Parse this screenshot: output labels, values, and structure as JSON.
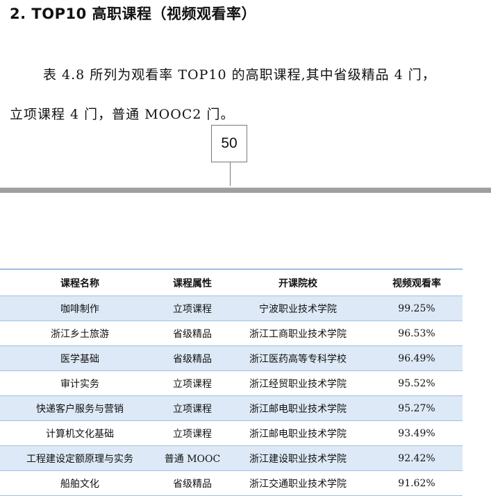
{
  "heading": "2. TOP10 高职课程（视频观看率）",
  "paragraph": {
    "line1": "表 4.8 所列为观看率 TOP10 的高职课程,其中省级精品 4 门，",
    "line2": "立项课程 4 门，普通 MOOC2 门。"
  },
  "page_number": "50",
  "table": {
    "headers": [
      "课程名称",
      "课程属性",
      "开课院校",
      "视频观看率"
    ],
    "rows": [
      [
        "咖啡制作",
        "立项课程",
        "宁波职业技术学院",
        "99.25%"
      ],
      [
        "浙江乡土旅游",
        "省级精品",
        "浙江工商职业技术学院",
        "96.53%"
      ],
      [
        "医学基础",
        "省级精品",
        "浙江医药高等专科学校",
        "96.49%"
      ],
      [
        "审计实务",
        "立项课程",
        "浙江经贸职业技术学院",
        "95.52%"
      ],
      [
        "快递客户服务与营销",
        "立项课程",
        "浙江邮电职业技术学院",
        "95.27%"
      ],
      [
        "计算机文化基础",
        "立项课程",
        "浙江邮电职业技术学院",
        "93.49%"
      ],
      [
        "工程建设定额原理与实务",
        "普通 MOOC",
        "浙江建设职业技术学院",
        "92.42%"
      ],
      [
        "船舶文化",
        "省级精品",
        "浙江交通职业技术学院",
        "91.62%"
      ]
    ]
  }
}
